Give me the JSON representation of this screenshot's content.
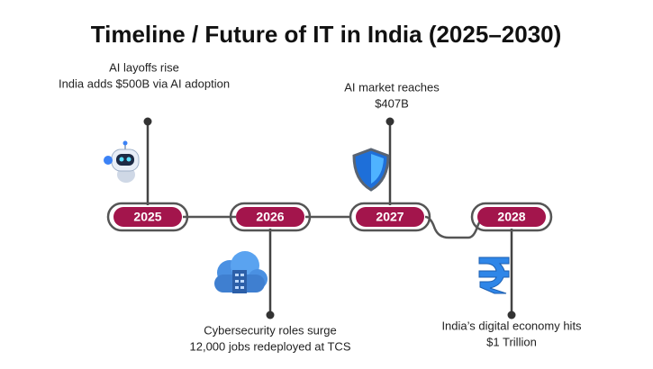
{
  "title": "Timeline / Future of IT in India (2025–2030)",
  "milestones": [
    {
      "year": "2025",
      "lines": [
        "AI layoffs rise",
        "India adds $500B via AI adoption"
      ]
    },
    {
      "year": "2026",
      "lines": [
        "Cybersecurity roles surge",
        "12,000 jobs redeployed at TCS"
      ]
    },
    {
      "year": "2027",
      "lines": [
        "AI market reaches",
        "$407B"
      ]
    },
    {
      "year": "2028",
      "lines": [
        "India’s digital economy hits",
        "$1 Trillion"
      ]
    }
  ]
}
